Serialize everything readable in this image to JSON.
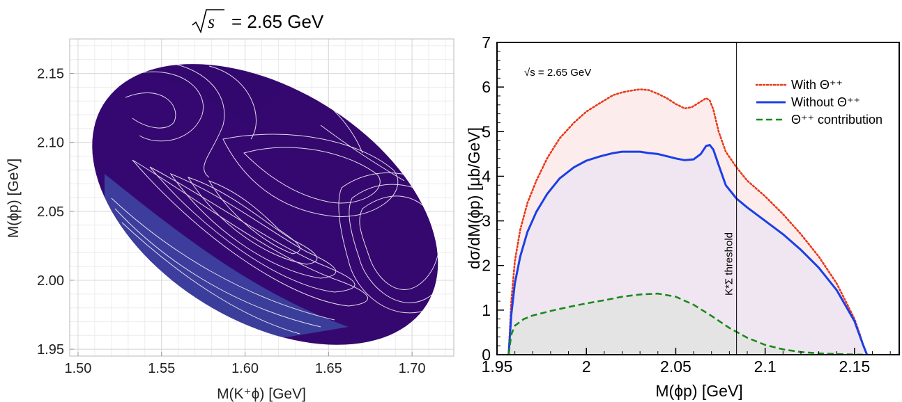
{
  "chart_data": [
    {
      "type": "heatmap",
      "title_radical": "√",
      "title_var": "s",
      "title_rest": "= 2.65 GeV",
      "xlabel": "M(K⁺ϕ) [GeV]",
      "ylabel": "M(ϕp) [GeV]",
      "xlim": [
        1.495,
        1.725
      ],
      "ylim": [
        1.945,
        2.175
      ],
      "xticks": [
        "1.50",
        "1.55",
        "1.60",
        "1.65",
        "1.70"
      ],
      "yticks": [
        "1.95",
        "2.00",
        "2.05",
        "2.10",
        "2.15"
      ],
      "xtick_values": [
        1.5,
        1.55,
        1.6,
        1.65,
        1.7
      ],
      "ytick_values": [
        1.95,
        2.0,
        2.05,
        2.1,
        2.15
      ],
      "grid": true,
      "region": "Dalitz plot boundary (ellipse-like)",
      "colormap": [
        "#3a0a78",
        "#5a2ab0",
        "#4a68d8",
        "#48a0ee",
        "#cdeeff"
      ],
      "contours": "white contour lines"
    },
    {
      "type": "area",
      "annotation": "√s = 2.65 GeV",
      "xlabel": "M(ϕp) [GeV]",
      "ylabel": "dσ/dM(ϕp) [μb/GeV]",
      "xlim": [
        1.95,
        2.175
      ],
      "ylim": [
        0,
        7
      ],
      "xticks": [
        "1.95",
        "2",
        "2.05",
        "2.1",
        "2.15"
      ],
      "xtick_values": [
        1.95,
        2.0,
        2.05,
        2.1,
        2.15
      ],
      "yticks": [
        "0",
        "1",
        "2",
        "3",
        "4",
        "5",
        "6",
        "7"
      ],
      "ytick_values": [
        0,
        1,
        2,
        3,
        4,
        5,
        6,
        7
      ],
      "threshold": {
        "x": 2.084,
        "label": "K*Σ threshold"
      },
      "legend_position": "top-right",
      "series": [
        {
          "name": "With Θ⁺⁺",
          "color": "#e8391a",
          "style": "dotted",
          "x": [
            1.9565,
            1.958,
            1.96,
            1.963,
            1.967,
            1.972,
            1.978,
            1.985,
            1.993,
            2.0,
            2.008,
            2.015,
            2.02,
            2.025,
            2.03,
            2.035,
            2.04,
            2.045,
            2.05,
            2.055,
            2.059,
            2.063,
            2.067,
            2.069,
            2.071,
            2.074,
            2.078,
            2.084,
            2.09,
            2.1,
            2.11,
            2.12,
            2.13,
            2.14,
            2.145,
            2.15,
            2.153,
            2.155,
            2.157
          ],
          "y": [
            0,
            1.2,
            2.1,
            2.8,
            3.4,
            3.9,
            4.4,
            4.85,
            5.2,
            5.45,
            5.65,
            5.82,
            5.88,
            5.92,
            5.95,
            5.93,
            5.85,
            5.75,
            5.62,
            5.52,
            5.55,
            5.65,
            5.75,
            5.7,
            5.5,
            5.0,
            4.55,
            4.2,
            3.9,
            3.55,
            3.15,
            2.7,
            2.2,
            1.6,
            1.2,
            0.8,
            0.45,
            0.2,
            0
          ]
        },
        {
          "name": "Without Θ⁺⁺",
          "color": "#1b3fe6",
          "style": "solid",
          "x": [
            1.9565,
            1.958,
            1.96,
            1.963,
            1.967,
            1.972,
            1.978,
            1.985,
            1.993,
            2.0,
            2.008,
            2.015,
            2.02,
            2.025,
            2.03,
            2.035,
            2.04,
            2.045,
            2.05,
            2.055,
            2.06,
            2.064,
            2.067,
            2.069,
            2.071,
            2.074,
            2.078,
            2.084,
            2.09,
            2.1,
            2.11,
            2.12,
            2.13,
            2.14,
            2.145,
            2.15,
            2.153,
            2.155,
            2.157
          ],
          "y": [
            0,
            0.9,
            1.6,
            2.2,
            2.75,
            3.2,
            3.6,
            3.95,
            4.2,
            4.35,
            4.45,
            4.52,
            4.55,
            4.55,
            4.55,
            4.52,
            4.5,
            4.45,
            4.4,
            4.36,
            4.38,
            4.5,
            4.68,
            4.7,
            4.6,
            4.25,
            3.8,
            3.5,
            3.3,
            3.0,
            2.7,
            2.35,
            1.95,
            1.45,
            1.1,
            0.75,
            0.42,
            0.2,
            0
          ]
        },
        {
          "name": "Θ⁺⁺ contribution",
          "color": "#1a8a1a",
          "style": "dashed",
          "x": [
            1.9565,
            1.958,
            1.96,
            1.965,
            1.97,
            1.98,
            1.99,
            2.0,
            2.01,
            2.02,
            2.03,
            2.04,
            2.05,
            2.06,
            2.07,
            2.08,
            2.09,
            2.1,
            2.11,
            2.12,
            2.13,
            2.14,
            2.15,
            2.157
          ],
          "y": [
            0,
            0.45,
            0.65,
            0.8,
            0.88,
            0.98,
            1.07,
            1.15,
            1.22,
            1.3,
            1.35,
            1.37,
            1.3,
            1.12,
            0.87,
            0.6,
            0.38,
            0.22,
            0.12,
            0.06,
            0.03,
            0.015,
            0.005,
            0
          ]
        }
      ],
      "fill_colors": {
        "with": "#fdecec",
        "without": "#efe6f1",
        "contribution": "#e4e4e4"
      }
    }
  ]
}
